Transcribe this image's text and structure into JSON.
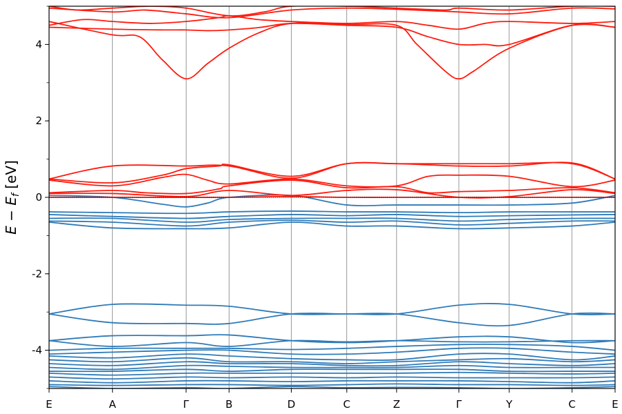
{
  "chart_data": {
    "type": "line",
    "title": "",
    "ylabel": "E − E_f [eV]",
    "ylabel_parts": {
      "E1": "E",
      "minus": "−",
      "E2": "E",
      "sub": "f",
      "unit": "[eV]"
    },
    "xlabel": "",
    "ylim": [
      -5,
      5
    ],
    "y_ticks": [
      -4,
      -2,
      0,
      2,
      4
    ],
    "y_tick_labels": [
      "-4",
      "-2",
      "0",
      "2",
      "4"
    ],
    "y_minor_step": 1,
    "fermi_level": 0,
    "x_ticks": [
      {
        "label": "E",
        "k": 0.0
      },
      {
        "label": "A",
        "k": 0.112
      },
      {
        "label": "Γ",
        "k": 0.242
      },
      {
        "label": "B",
        "k": 0.318
      },
      {
        "label": "D",
        "k": 0.428
      },
      {
        "label": "C",
        "k": 0.526
      },
      {
        "label": "Z",
        "k": 0.614
      },
      {
        "label": "Γ",
        "k": 0.724
      },
      {
        "label": "Y",
        "k": 0.813
      },
      {
        "label": "C",
        "k": 0.924
      },
      {
        "label": "E",
        "k": 1.0
      }
    ],
    "xlim": [
      0,
      1
    ],
    "colors": {
      "conduction": "#ff1a0d",
      "valence": "#2e7ab8",
      "grid": "#555555"
    },
    "conduction_bands": [
      {
        "k": [
          0,
          0.112,
          0.2,
          0.242,
          0.28,
          0.318,
          0.37,
          0.428,
          0.526,
          0.614,
          0.67,
          0.724,
          0.77,
          0.813,
          0.924,
          1.0
        ],
        "e": [
          4.45,
          4.4,
          4.38,
          4.38,
          4.36,
          4.38,
          4.44,
          4.55,
          4.5,
          4.45,
          4.2,
          4.0,
          4.0,
          4.0,
          4.5,
          4.45
        ]
      },
      {
        "k": [
          0,
          0.112,
          0.16,
          0.2,
          0.242,
          0.28,
          0.318,
          0.37,
          0.428,
          0.526,
          0.614,
          0.65,
          0.7,
          0.724,
          0.75,
          0.813,
          0.924,
          1.0
        ],
        "e": [
          4.6,
          4.25,
          4.2,
          3.6,
          3.1,
          3.5,
          3.9,
          4.3,
          4.55,
          4.52,
          4.5,
          4.0,
          3.3,
          3.1,
          3.3,
          3.9,
          4.5,
          4.45
        ]
      },
      {
        "k": [
          0,
          0.06,
          0.112,
          0.18,
          0.242,
          0.3,
          0.318,
          0.37,
          0.428,
          0.526,
          0.614,
          0.67,
          0.724,
          0.77,
          0.813,
          0.924,
          1.0
        ],
        "e": [
          4.5,
          4.65,
          4.6,
          4.55,
          4.6,
          4.7,
          4.75,
          4.65,
          4.6,
          4.55,
          4.6,
          4.5,
          4.4,
          4.55,
          4.6,
          4.55,
          4.6
        ]
      },
      {
        "k": [
          0,
          0.112,
          0.17,
          0.242,
          0.318,
          0.428,
          0.526,
          0.614,
          0.724,
          0.813,
          0.924,
          1.0
        ],
        "e": [
          4.95,
          4.85,
          4.9,
          4.8,
          4.7,
          4.9,
          4.95,
          4.92,
          4.85,
          4.8,
          4.95,
          4.93
        ]
      },
      {
        "k": [
          0,
          0.05,
          0.112,
          0.18,
          0.242,
          0.318,
          0.38,
          0.428,
          0.526,
          0.614,
          0.7,
          0.724,
          0.813,
          0.924,
          1.0
        ],
        "e": [
          5.0,
          4.9,
          4.95,
          5.0,
          4.95,
          4.75,
          4.85,
          5.0,
          5.0,
          4.95,
          4.9,
          4.95,
          4.9,
          5.0,
          5.0
        ]
      },
      {
        "k": [
          0,
          0.112,
          0.2,
          0.242,
          0.3,
          0.318,
          0.428,
          0.526,
          0.614,
          0.724,
          0.813,
          0.924,
          1.0
        ],
        "e": [
          0.48,
          0.38,
          0.58,
          0.75,
          0.82,
          0.85,
          0.55,
          0.88,
          0.88,
          0.82,
          0.82,
          0.9,
          0.48
        ]
      },
      {
        "k": [
          0,
          0.112,
          0.242,
          0.318,
          0.428,
          0.526,
          0.614,
          0.724,
          0.813,
          0.924,
          1.0
        ],
        "e": [
          0.48,
          0.82,
          0.82,
          0.82,
          0.5,
          0.88,
          0.88,
          0.88,
          0.88,
          0.88,
          0.48
        ]
      },
      {
        "k": [
          0,
          0.112,
          0.2,
          0.242,
          0.28,
          0.318,
          0.428,
          0.526,
          0.614,
          0.67,
          0.724,
          0.813,
          0.924,
          1.0
        ],
        "e": [
          0.45,
          0.3,
          0.52,
          0.6,
          0.45,
          0.35,
          0.48,
          0.3,
          0.3,
          0.55,
          0.58,
          0.55,
          0.28,
          0.45
        ]
      },
      {
        "k": [
          0,
          0.112,
          0.17,
          0.242,
          0.3,
          0.318,
          0.428,
          0.526,
          0.614,
          0.67,
          0.724,
          0.813,
          0.924,
          1.0
        ],
        "e": [
          0.12,
          0.18,
          0.12,
          0.1,
          0.22,
          0.3,
          0.45,
          0.25,
          0.28,
          0.12,
          0.15,
          0.18,
          0.25,
          0.12
        ]
      },
      {
        "k": [
          0,
          0.112,
          0.242,
          0.318,
          0.428,
          0.526,
          0.614,
          0.724,
          0.813,
          0.924,
          1.0
        ],
        "e": [
          0.1,
          0.1,
          0.02,
          0.18,
          0.05,
          0.18,
          0.2,
          0.0,
          0.02,
          0.2,
          0.1
        ]
      },
      {
        "k": [
          0,
          0.112,
          0.242,
          0.318,
          0.428,
          0.526,
          0.614,
          0.724,
          0.813,
          0.924,
          1.0
        ],
        "e": [
          0.0,
          0.0,
          0.0,
          0.0,
          0.02,
          0.0,
          0.0,
          0.0,
          0.0,
          0.0,
          0.0
        ]
      }
    ],
    "valence_bands": [
      {
        "k": [
          0,
          0.112,
          0.2,
          0.242,
          0.28,
          0.318,
          0.428,
          0.526,
          0.614,
          0.724,
          0.813,
          0.924,
          1.0
        ],
        "e": [
          0.05,
          0.0,
          -0.18,
          -0.25,
          -0.15,
          0.0,
          0.05,
          -0.2,
          -0.2,
          -0.2,
          -0.2,
          -0.15,
          0.05
        ]
      },
      {
        "k": [
          0,
          0.112,
          0.242,
          0.318,
          0.428,
          0.526,
          0.614,
          0.724,
          0.813,
          0.924,
          1.0
        ],
        "e": [
          -0.38,
          -0.4,
          -0.42,
          -0.38,
          -0.36,
          -0.38,
          -0.38,
          -0.4,
          -0.38,
          -0.38,
          -0.38
        ]
      },
      {
        "k": [
          0,
          0.112,
          0.242,
          0.318,
          0.428,
          0.526,
          0.614,
          0.724,
          0.813,
          0.924,
          1.0
        ],
        "e": [
          -0.45,
          -0.5,
          -0.55,
          -0.5,
          -0.45,
          -0.48,
          -0.45,
          -0.5,
          -0.48,
          -0.46,
          -0.45
        ]
      },
      {
        "k": [
          0,
          0.112,
          0.242,
          0.318,
          0.428,
          0.526,
          0.614,
          0.724,
          0.813,
          0.924,
          1.0
        ],
        "e": [
          -0.55,
          -0.55,
          -0.65,
          -0.58,
          -0.55,
          -0.55,
          -0.55,
          -0.62,
          -0.58,
          -0.55,
          -0.55
        ]
      },
      {
        "k": [
          0,
          0.112,
          0.242,
          0.318,
          0.428,
          0.526,
          0.614,
          0.724,
          0.813,
          0.924,
          1.0
        ],
        "e": [
          -0.62,
          -0.65,
          -0.75,
          -0.65,
          -0.6,
          -0.65,
          -0.62,
          -0.72,
          -0.68,
          -0.62,
          -0.62
        ]
      },
      {
        "k": [
          0,
          0.112,
          0.242,
          0.318,
          0.428,
          0.526,
          0.614,
          0.724,
          0.813,
          0.924,
          1.0
        ],
        "e": [
          -0.65,
          -0.8,
          -0.82,
          -0.8,
          -0.65,
          -0.75,
          -0.75,
          -0.82,
          -0.8,
          -0.75,
          -0.65
        ]
      },
      {
        "k": [
          0,
          0.112,
          0.242,
          0.318,
          0.428,
          0.526,
          0.614,
          0.724,
          0.813,
          0.924,
          1.0
        ],
        "e": [
          -3.05,
          -2.8,
          -2.82,
          -2.85,
          -3.05,
          -3.05,
          -3.05,
          -2.82,
          -2.8,
          -3.05,
          -3.05
        ]
      },
      {
        "k": [
          0,
          0.112,
          0.242,
          0.318,
          0.428,
          0.526,
          0.614,
          0.724,
          0.813,
          0.924,
          1.0
        ],
        "e": [
          -3.05,
          -3.28,
          -3.3,
          -3.3,
          -3.05,
          -3.05,
          -3.05,
          -3.28,
          -3.35,
          -3.05,
          -3.05
        ]
      },
      {
        "k": [
          0,
          0.112,
          0.242,
          0.318,
          0.428,
          0.526,
          0.614,
          0.724,
          0.813,
          0.924,
          1.0
        ],
        "e": [
          -3.75,
          -3.62,
          -3.62,
          -3.6,
          -3.75,
          -3.8,
          -3.75,
          -3.65,
          -3.65,
          -3.8,
          -3.75
        ]
      },
      {
        "k": [
          0,
          0.112,
          0.242,
          0.318,
          0.428,
          0.526,
          0.614,
          0.724,
          0.813,
          0.924,
          1.0
        ],
        "e": [
          -3.75,
          -3.9,
          -3.8,
          -3.9,
          -3.75,
          -3.78,
          -3.75,
          -3.78,
          -3.78,
          -3.75,
          -3.75
        ]
      },
      {
        "k": [
          0,
          0.112,
          0.242,
          0.318,
          0.428,
          0.526,
          0.614,
          0.724,
          0.813,
          0.924,
          1.0
        ],
        "e": [
          -4.0,
          -3.95,
          -3.95,
          -3.95,
          -3.98,
          -3.95,
          -3.9,
          -3.85,
          -3.85,
          -3.9,
          -4.0
        ]
      },
      {
        "k": [
          0,
          0.112,
          0.242,
          0.318,
          0.428,
          0.526,
          0.614,
          0.724,
          0.813,
          0.924,
          1.0
        ],
        "e": [
          -4.1,
          -4.05,
          -4.0,
          -4.0,
          -4.1,
          -4.1,
          -4.05,
          -3.95,
          -3.95,
          -4.05,
          -4.1
        ]
      },
      {
        "k": [
          0,
          0.112,
          0.242,
          0.318,
          0.428,
          0.526,
          0.614,
          0.724,
          0.813,
          0.924,
          1.0
        ],
        "e": [
          -4.15,
          -4.2,
          -4.1,
          -4.15,
          -4.22,
          -4.25,
          -4.25,
          -4.1,
          -4.1,
          -4.25,
          -4.15
        ]
      },
      {
        "k": [
          0,
          0.112,
          0.242,
          0.318,
          0.428,
          0.526,
          0.614,
          0.724,
          0.813,
          0.924,
          1.0
        ],
        "e": [
          -4.25,
          -4.3,
          -4.2,
          -4.3,
          -4.3,
          -4.35,
          -4.3,
          -4.25,
          -4.22,
          -4.3,
          -4.25
        ]
      },
      {
        "k": [
          0,
          0.112,
          0.242,
          0.318,
          0.428,
          0.526,
          0.614,
          0.724,
          0.813,
          0.924,
          1.0
        ],
        "e": [
          -4.35,
          -4.4,
          -4.3,
          -4.35,
          -4.35,
          -4.4,
          -4.4,
          -4.3,
          -4.35,
          -4.4,
          -4.35
        ]
      },
      {
        "k": [
          0,
          0.112,
          0.242,
          0.318,
          0.428,
          0.526,
          0.614,
          0.724,
          0.813,
          0.924,
          1.0
        ],
        "e": [
          -4.45,
          -4.5,
          -4.4,
          -4.42,
          -4.45,
          -4.45,
          -4.45,
          -4.4,
          -4.45,
          -4.45,
          -4.45
        ]
      },
      {
        "k": [
          0,
          0.112,
          0.242,
          0.318,
          0.428,
          0.526,
          0.614,
          0.724,
          0.813,
          0.924,
          1.0
        ],
        "e": [
          -4.55,
          -4.55,
          -4.5,
          -4.55,
          -4.5,
          -4.5,
          -4.5,
          -4.5,
          -4.55,
          -4.55,
          -4.55
        ]
      },
      {
        "k": [
          0,
          0.112,
          0.242,
          0.318,
          0.428,
          0.526,
          0.614,
          0.724,
          0.813,
          0.924,
          1.0
        ],
        "e": [
          -4.6,
          -4.65,
          -4.6,
          -4.6,
          -4.6,
          -4.6,
          -4.6,
          -4.58,
          -4.6,
          -4.62,
          -4.6
        ]
      },
      {
        "k": [
          0,
          0.112,
          0.242,
          0.318,
          0.428,
          0.526,
          0.614,
          0.724,
          0.813,
          0.924,
          1.0
        ],
        "e": [
          -4.7,
          -4.75,
          -4.7,
          -4.72,
          -4.7,
          -4.72,
          -4.7,
          -4.72,
          -4.72,
          -4.72,
          -4.7
        ]
      },
      {
        "k": [
          0,
          0.112,
          0.242,
          0.318,
          0.428,
          0.526,
          0.614,
          0.724,
          0.813,
          0.924,
          1.0
        ],
        "e": [
          -4.8,
          -4.85,
          -4.8,
          -4.8,
          -4.82,
          -4.8,
          -4.8,
          -4.8,
          -4.82,
          -4.85,
          -4.8
        ]
      },
      {
        "k": [
          0,
          0.112,
          0.242,
          0.318,
          0.428,
          0.526,
          0.614,
          0.724,
          0.813,
          0.924,
          1.0
        ],
        "e": [
          -4.9,
          -4.92,
          -4.9,
          -4.9,
          -4.92,
          -4.9,
          -4.88,
          -4.9,
          -4.9,
          -4.92,
          -4.9
        ]
      },
      {
        "k": [
          0,
          0.112,
          0.242,
          0.318,
          0.428,
          0.526,
          0.614,
          0.724,
          0.813,
          0.924,
          1.0
        ],
        "e": [
          -4.95,
          -5.0,
          -4.98,
          -5.0,
          -4.95,
          -4.98,
          -4.97,
          -4.98,
          -5.0,
          -4.98,
          -4.95
        ]
      }
    ]
  }
}
